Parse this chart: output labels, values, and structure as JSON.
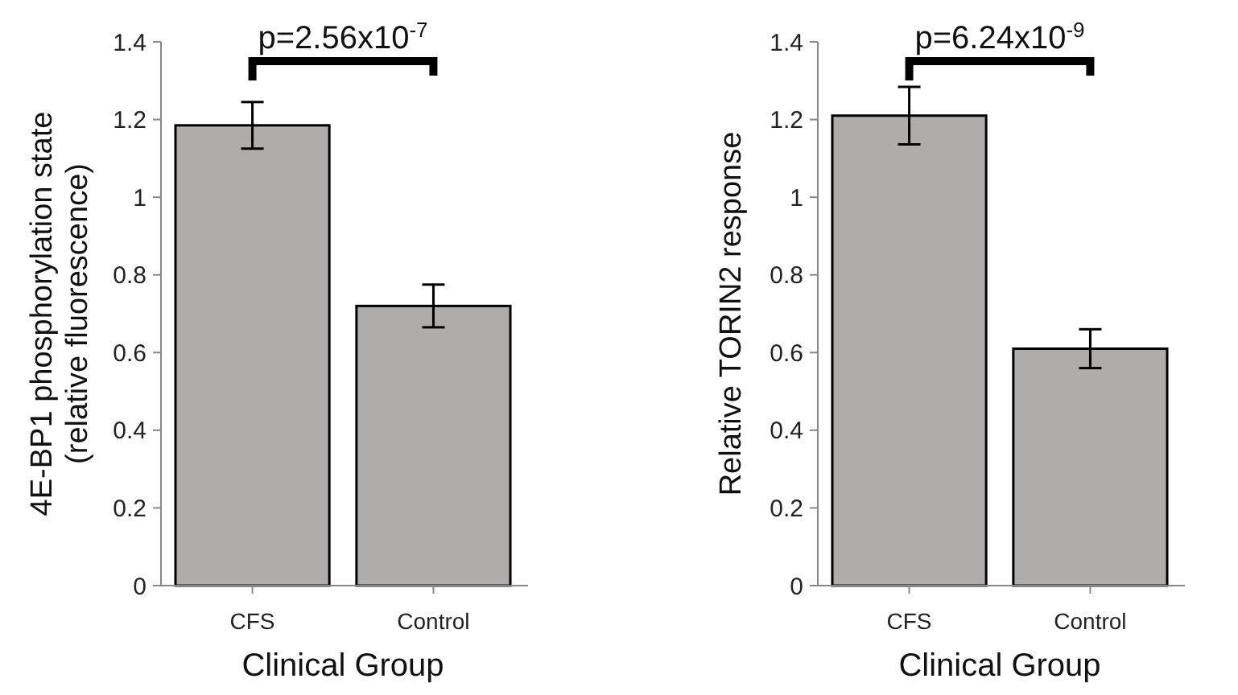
{
  "chart_data": [
    {
      "type": "bar",
      "categories": [
        "CFS",
        "Control"
      ],
      "values": [
        1.185,
        0.72
      ],
      "errors": [
        0.06,
        0.055
      ],
      "color": "#afacac",
      "xlabel": "Clinical Group",
      "ylabel": "4E-BP1 phosphorylation state\n(relative fluorescence)",
      "ylim": [
        0,
        1.4
      ],
      "yticks": [
        0,
        0.2,
        0.4,
        0.6,
        0.8,
        1,
        1.2,
        1.4
      ],
      "annotations": [
        "p=2.56x10$^{-7}$"
      ]
    },
    {
      "type": "bar",
      "categories": [
        "CFS",
        "Control"
      ],
      "values": [
        1.21,
        0.61
      ],
      "errors": [
        0.074,
        0.05
      ],
      "color": "#afacac",
      "xlabel": "Clinical Group",
      "ylabel": "Relative TORIN2 response",
      "ylim": [
        0,
        1.4
      ],
      "yticks": [
        0,
        0.2,
        0.4,
        0.6,
        0.8,
        1,
        1.2,
        1.4
      ],
      "annotations": [
        "p=6.24x10$^{-9}$"
      ]
    }
  ]
}
